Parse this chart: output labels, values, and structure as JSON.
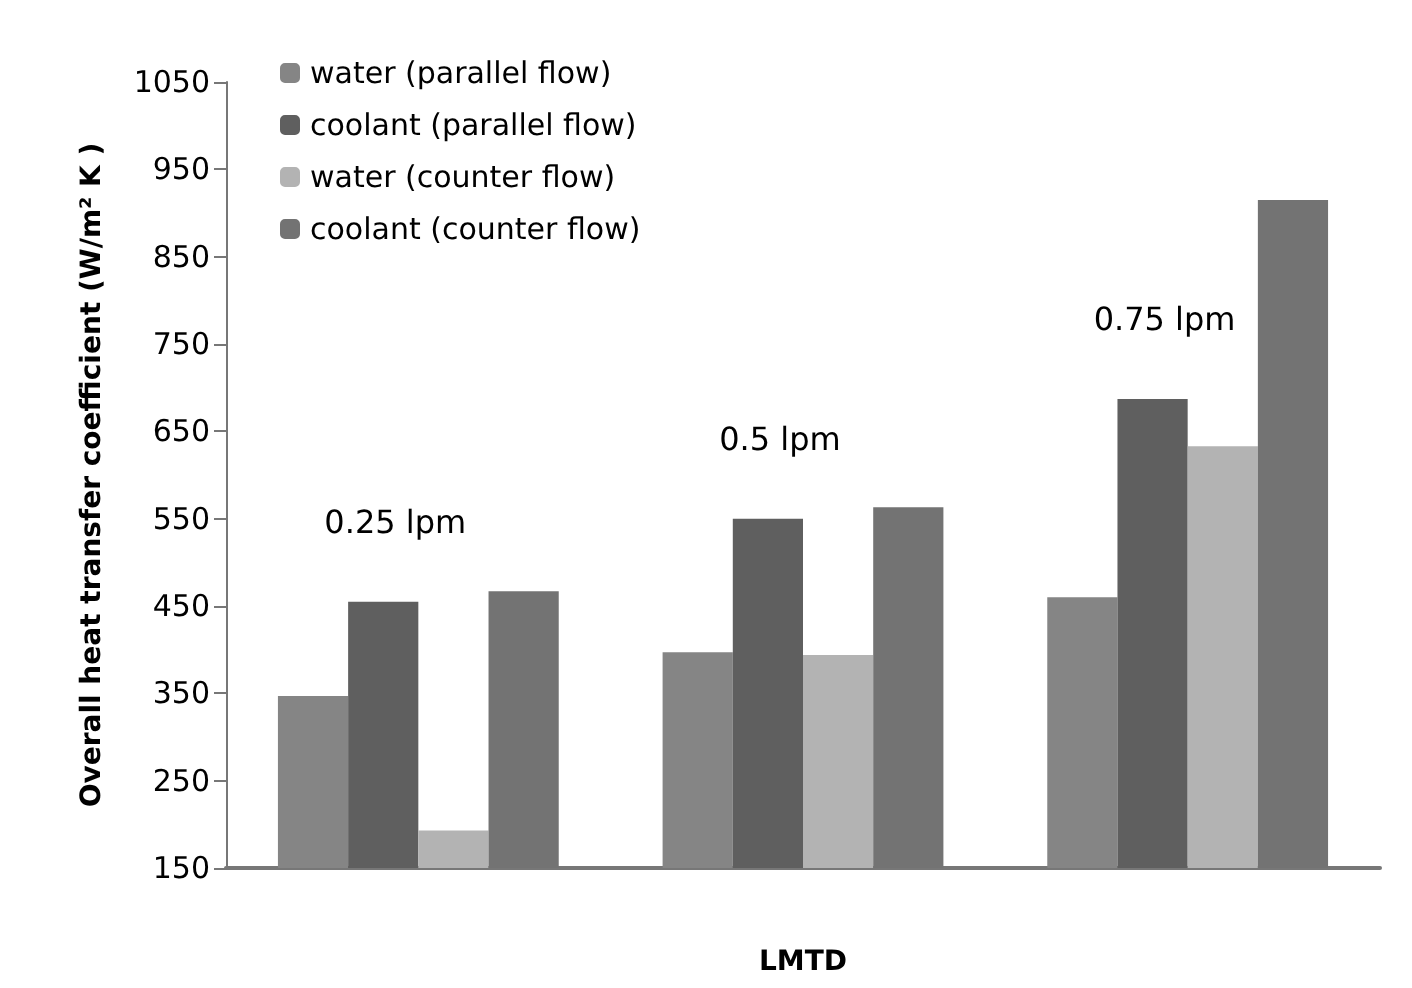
{
  "chart_data": {
    "type": "bar",
    "xlabel": "LMTD",
    "ylabel": "Overall heat transfer coefficient (W/m² K )",
    "categories": [
      null,
      null,
      null
    ],
    "series": [
      {
        "name": "water (parallel flow)",
        "color": "#858585",
        "values": [
          347,
          397,
          460
        ]
      },
      {
        "name": "coolant (parallel flow)",
        "color": "#5f5f5f",
        "values": [
          455,
          550,
          687
        ]
      },
      {
        "name": "water (counter flow)",
        "color": "#b3b3b3",
        "values": [
          193,
          394,
          633
        ]
      },
      {
        "name": "coolant (counter flow)",
        "color": "#737373",
        "values": [
          467,
          563,
          915
        ]
      }
    ],
    "annotations": [
      "0.25 lpm",
      "0.5 lpm",
      "0.75 lpm"
    ],
    "ylim": [
      150,
      1050
    ],
    "yticks": [
      150,
      250,
      350,
      450,
      550,
      650,
      750,
      850,
      950,
      1050
    ],
    "grid": false,
    "legend": "top left"
  }
}
